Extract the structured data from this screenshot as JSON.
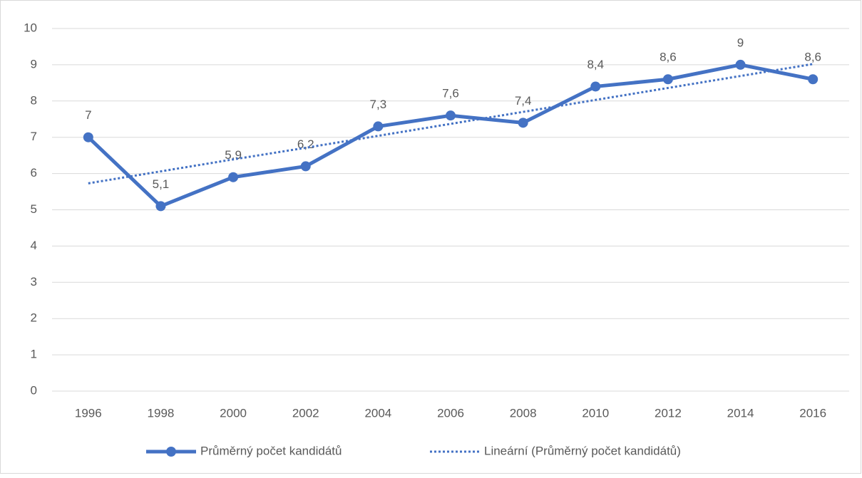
{
  "chart_data": {
    "type": "line",
    "categories": [
      "1996",
      "1998",
      "2000",
      "2002",
      "2004",
      "2006",
      "2008",
      "2010",
      "2012",
      "2014",
      "2016"
    ],
    "series": [
      {
        "name": "Průměrný počet kandidátů",
        "color": "#4472c4",
        "style": "solid",
        "values": [
          7,
          5.1,
          5.9,
          6.2,
          7.3,
          7.6,
          7.4,
          8.4,
          8.6,
          9,
          8.6
        ],
        "value_labels": [
          "7",
          "5,1",
          "5,9",
          "6,2",
          "7,3",
          "7,6",
          "7,4",
          "8,4",
          "8,6",
          "9",
          "8,6"
        ]
      },
      {
        "name": "Lineární (Průměrný počet kandidátů)",
        "color": "#4472c4",
        "style": "dotted",
        "values": [
          5.73,
          6.06,
          6.39,
          6.71,
          7.04,
          7.37,
          7.7,
          8.03,
          8.36,
          8.69,
          9.02
        ]
      }
    ],
    "ylim": [
      0,
      10
    ],
    "yticks": [
      0,
      1,
      2,
      3,
      4,
      5,
      6,
      7,
      8,
      9,
      10
    ],
    "grid": true,
    "legend": "bottom"
  }
}
